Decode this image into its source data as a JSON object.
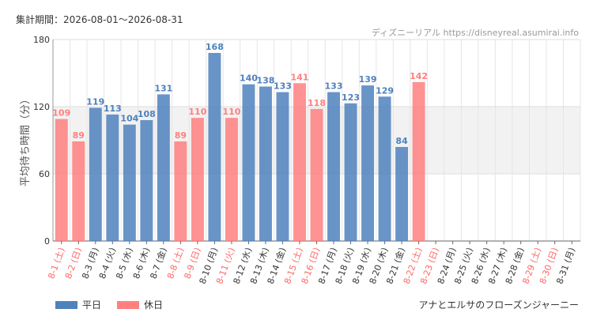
{
  "header": {
    "period": "集計期間：2026-08-01～2026-08-31",
    "credit": "ディズニーリアル https://disneyreal.asumirai.info"
  },
  "attraction": "アナとエルサのフローズンジャーニー",
  "legend": {
    "weekday": "平日",
    "holiday": "休日"
  },
  "colors": {
    "weekday": "#4f81bd",
    "holiday": "#ff7f7f",
    "band": "#f2f2f2"
  },
  "chart_data": {
    "type": "bar",
    "ylabel": "平均待ち時間（分）",
    "ylim": [
      0,
      180
    ],
    "yticks": [
      0,
      60,
      120,
      180
    ],
    "band": [
      60,
      120
    ],
    "grid": true,
    "categories": [
      "8-1 (土)",
      "8-2 (日)",
      "8-3 (月)",
      "8-4 (火)",
      "8-5 (水)",
      "8-6 (木)",
      "8-7 (金)",
      "8-8 (土)",
      "8-9 (日)",
      "8-10 (月)",
      "8-11 (火)",
      "8-12 (水)",
      "8-13 (木)",
      "8-14 (金)",
      "8-15 (土)",
      "8-16 (日)",
      "8-17 (月)",
      "8-18 (火)",
      "8-19 (水)",
      "8-20 (木)",
      "8-21 (金)",
      "8-22 (土)",
      "8-23 (日)",
      "8-24 (月)",
      "8-25 (火)",
      "8-26 (水)",
      "8-27 (木)",
      "8-28 (金)",
      "8-29 (土)",
      "8-30 (日)",
      "8-31 (月)"
    ],
    "values": [
      109,
      89,
      119,
      113,
      104,
      108,
      131,
      89,
      110,
      168,
      110,
      140,
      138,
      133,
      141,
      118,
      133,
      123,
      139,
      129,
      84,
      142,
      null,
      null,
      null,
      null,
      null,
      null,
      null,
      null,
      null
    ],
    "day_type": [
      "holiday",
      "holiday",
      "weekday",
      "weekday",
      "weekday",
      "weekday",
      "weekday",
      "holiday",
      "holiday",
      "weekday",
      "holiday",
      "weekday",
      "weekday",
      "weekday",
      "holiday",
      "holiday",
      "weekday",
      "weekday",
      "weekday",
      "weekday",
      "weekday",
      "holiday",
      "holiday",
      "weekday",
      "weekday",
      "weekday",
      "weekday",
      "weekday",
      "holiday",
      "holiday",
      "weekday"
    ],
    "legend_position": "bottom-left"
  }
}
